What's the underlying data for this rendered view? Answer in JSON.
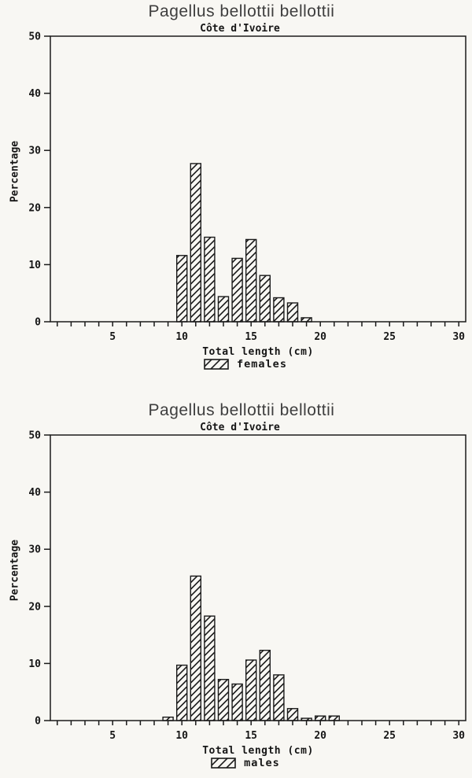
{
  "style": {
    "paper_color": "#f8f7f3",
    "ink_color": "#1a1a1a",
    "title_color": "#3e3e3e",
    "hatch_pattern": "diagonal-forward-slash"
  },
  "chart_data": [
    {
      "type": "bar",
      "title": "Pagellus bellottii bellottii",
      "subtitle": "Côte d'Ivoire",
      "xlabel": "Total length (cm)",
      "ylabel": "Percentage",
      "legend_label": "females",
      "legend_swatch": "diagonal-hatch",
      "legend_position": "below-x-axis",
      "grid": false,
      "xlim": [
        0.5,
        30.5
      ],
      "ylim": [
        0,
        50
      ],
      "yticks": [
        0,
        10,
        20,
        30,
        40,
        50
      ],
      "xtick_minor_step": 1,
      "xticks_labeled": [
        5,
        10,
        15,
        20,
        25,
        30
      ],
      "bar_width_cm": 0.74,
      "x": [
        10,
        11,
        12,
        13,
        14,
        15,
        16,
        17,
        18,
        19
      ],
      "values": [
        11.6,
        27.7,
        14.8,
        4.4,
        11.1,
        14.4,
        8.1,
        4.2,
        3.3,
        0.7
      ]
    },
    {
      "type": "bar",
      "title": "Pagellus bellottii bellottii",
      "subtitle": "Côte d'Ivoire",
      "xlabel": "Total length (cm)",
      "ylabel": "Percentage",
      "legend_label": "males",
      "legend_swatch": "diagonal-hatch",
      "legend_position": "below-x-axis",
      "grid": false,
      "xlim": [
        0.5,
        30.5
      ],
      "ylim": [
        0,
        50
      ],
      "yticks": [
        0,
        10,
        20,
        30,
        40,
        50
      ],
      "xtick_minor_step": 1,
      "xticks_labeled": [
        5,
        10,
        15,
        20,
        25,
        30
      ],
      "bar_width_cm": 0.74,
      "x": [
        9,
        10,
        11,
        12,
        13,
        14,
        15,
        16,
        17,
        18,
        19,
        20,
        21
      ],
      "values": [
        0.6,
        9.7,
        25.3,
        18.3,
        7.2,
        6.4,
        10.6,
        12.3,
        8.0,
        2.1,
        0.4,
        0.8,
        0.8
      ]
    }
  ]
}
